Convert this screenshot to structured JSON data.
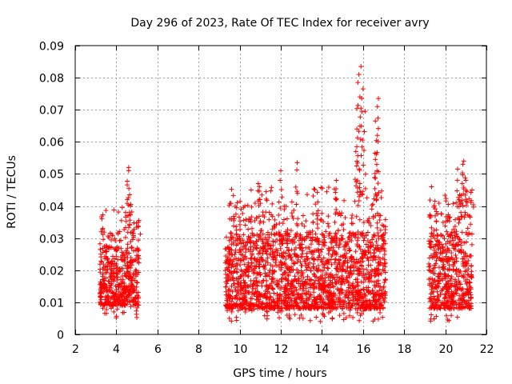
{
  "chart_data": {
    "type": "scatter",
    "title": "Day 296 of 2023, Rate Of TEC Index for receiver avry",
    "xlabel": "GPS time / hours",
    "ylabel": "ROTI / TECUs",
    "xlim": [
      2,
      22
    ],
    "ylim": [
      0,
      0.09
    ],
    "grid": true,
    "marker": "+",
    "color": "#ff0000",
    "x_ticks": [
      2,
      4,
      6,
      8,
      10,
      12,
      14,
      16,
      18,
      20,
      22
    ],
    "x_tick_labels": [
      "2",
      "4",
      "6",
      "8",
      "10",
      "12",
      "14",
      "16",
      "18",
      "20",
      "22"
    ],
    "y_ticks": [
      0,
      0.01,
      0.02,
      0.03,
      0.04,
      0.05,
      0.06,
      0.07,
      0.08,
      0.09
    ],
    "y_tick_labels": [
      "0",
      "0.01",
      "0.02",
      "0.03",
      "0.04",
      "0.05",
      "0.06",
      "0.07",
      "0.08",
      "0.09"
    ],
    "segments": [
      {
        "x_start": 3.2,
        "x_end": 5.1,
        "typical_low": 0.005,
        "typical_high": 0.032,
        "peaks": [
          [
            4.6,
            0.052
          ],
          [
            4.6,
            0.051
          ],
          [
            4.65,
            0.0435
          ],
          [
            4.7,
            0.0405
          ],
          [
            4.45,
            0.038
          ],
          [
            3.3,
            0.036
          ],
          [
            5.1,
            0.0355
          ]
        ]
      },
      {
        "x_start": 9.3,
        "x_end": 17.1,
        "typical_low": 0.004,
        "typical_high": 0.038,
        "peaks": [
          [
            15.9,
            0.0835
          ],
          [
            15.8,
            0.081
          ],
          [
            15.75,
            0.0785
          ],
          [
            16.0,
            0.0765
          ],
          [
            15.85,
            0.074
          ],
          [
            16.75,
            0.0735
          ],
          [
            16.7,
            0.071
          ],
          [
            15.9,
            0.0705
          ],
          [
            16.1,
            0.0695
          ],
          [
            16.6,
            0.0665
          ],
          [
            15.7,
            0.064
          ],
          [
            16.7,
            0.062
          ],
          [
            15.65,
            0.057
          ],
          [
            16.6,
            0.0545
          ],
          [
            12.8,
            0.0535
          ],
          [
            12.0,
            0.051
          ],
          [
            14.7,
            0.048
          ],
          [
            10.9,
            0.047
          ]
        ]
      },
      {
        "x_start": 19.2,
        "x_end": 21.3,
        "typical_low": 0.004,
        "typical_high": 0.038,
        "peaks": [
          [
            20.9,
            0.054
          ],
          [
            20.85,
            0.053
          ],
          [
            20.6,
            0.0515
          ],
          [
            21.0,
            0.048
          ],
          [
            21.3,
            0.045
          ],
          [
            20.7,
            0.0435
          ],
          [
            19.5,
            0.0415
          ]
        ]
      }
    ]
  }
}
